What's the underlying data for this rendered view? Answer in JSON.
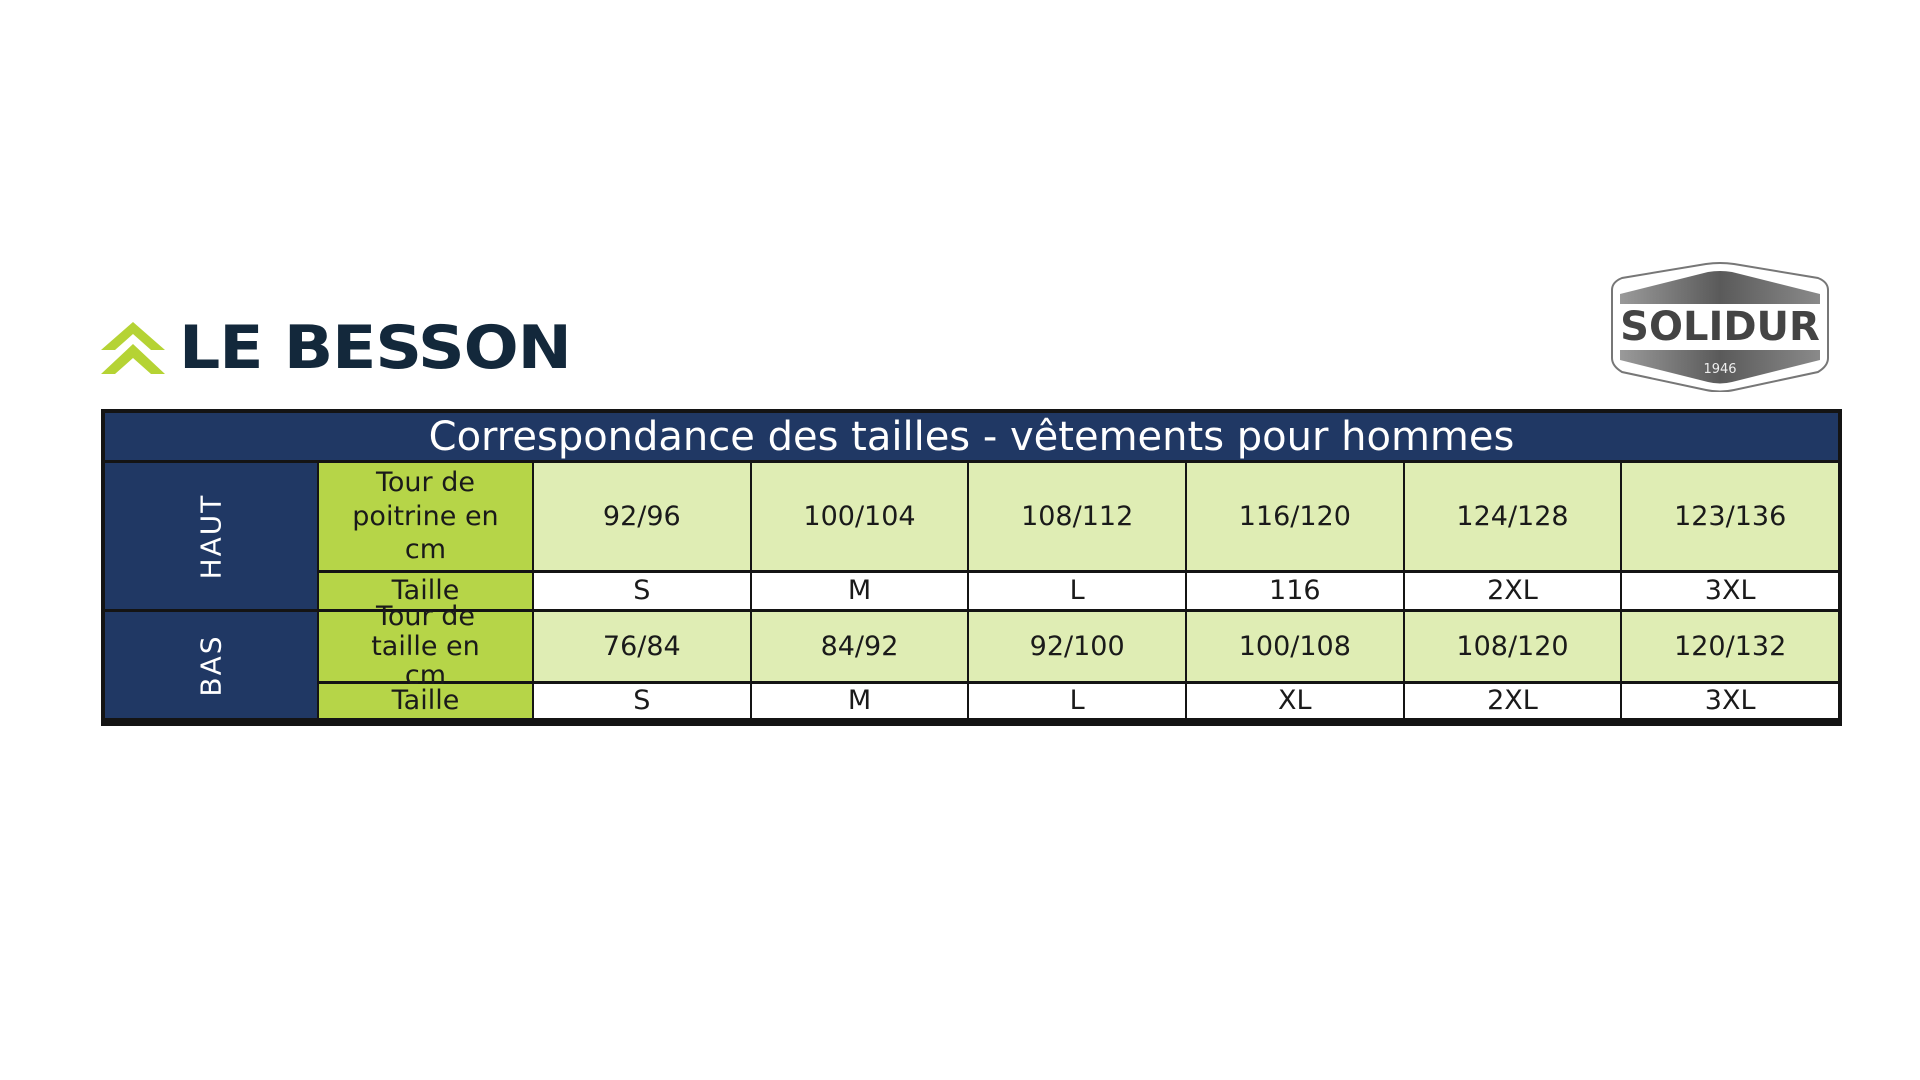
{
  "brand": {
    "name": "LE BESSON",
    "logo_color": "#b5d334",
    "text_color": "#13283b"
  },
  "partner_logo": {
    "name": "SOLIDUR",
    "year": "1946"
  },
  "table": {
    "title": "Correspondance des tailles - vêtements pour hommes",
    "colors": {
      "header": "#203864",
      "label": "#b6d548",
      "value": "#dfedb4"
    },
    "sections": [
      {
        "name": "HAUT",
        "measure_label": "Tour de poitrine en cm",
        "measures": [
          "92/96",
          "100/104",
          "108/112",
          "116/120",
          "124/128",
          "123/136"
        ],
        "size_label": "Taille",
        "sizes": [
          "S",
          "M",
          "L",
          "116",
          "2XL",
          "3XL"
        ]
      },
      {
        "name": "BAS",
        "measure_label": "Tour de taille en cm",
        "measures": [
          "76/84",
          "84/92",
          "92/100",
          "100/108",
          "108/120",
          "120/132"
        ],
        "size_label": "Taille",
        "sizes": [
          "S",
          "M",
          "L",
          "XL",
          "2XL",
          "3XL"
        ]
      }
    ]
  }
}
